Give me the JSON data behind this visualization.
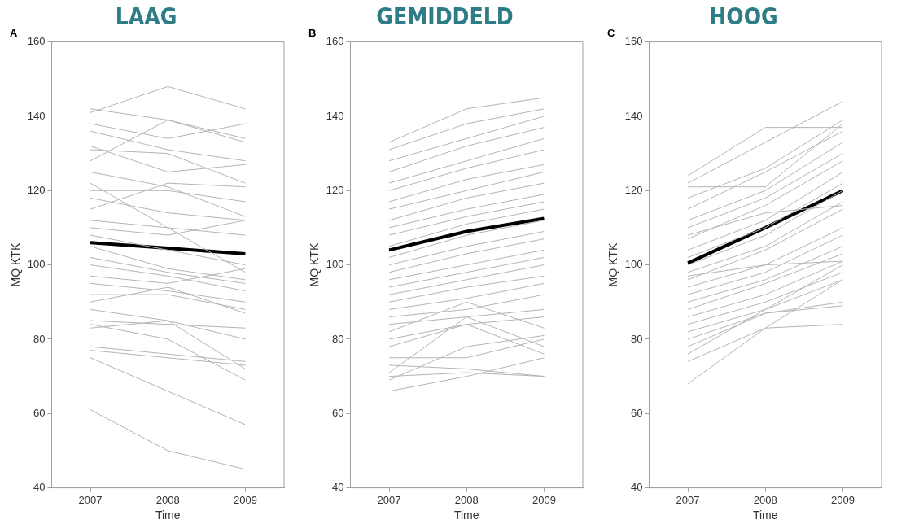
{
  "chart_data": [
    {
      "type": "line",
      "title": "LAAG",
      "annotations": [
        "A"
      ],
      "xlabel": "Time",
      "ylabel": "MQ KTK",
      "x": [
        2007,
        2008,
        2009
      ],
      "xlim": [
        2006.5,
        2009.5
      ],
      "xticks": [
        2007,
        2008,
        2009
      ],
      "ylim": [
        40,
        160
      ],
      "yticks": [
        40,
        60,
        80,
        100,
        120,
        140,
        160
      ],
      "series": [
        {
          "color": "#b4b4b4",
          "values": [
            141,
            148,
            142
          ]
        },
        {
          "color": "#b4b4b4",
          "values": [
            142,
            139,
            134
          ]
        },
        {
          "color": "#b4b4b4",
          "values": [
            61,
            50,
            45
          ]
        },
        {
          "color": "#b4b4b4",
          "values": [
            75,
            66,
            57
          ]
        },
        {
          "color": "#b4b4b4",
          "values": [
            138,
            134,
            138
          ]
        },
        {
          "color": "#b4b4b4",
          "values": [
            136,
            131,
            128
          ]
        },
        {
          "color": "#b4b4b4",
          "values": [
            132,
            125,
            127
          ]
        },
        {
          "color": "#b4b4b4",
          "values": [
            128,
            139,
            133
          ]
        },
        {
          "color": "#b4b4b4",
          "values": [
            120,
            120,
            117
          ]
        },
        {
          "color": "#b4b4b4",
          "values": [
            118,
            114,
            112
          ]
        },
        {
          "color": "#b4b4b4",
          "values": [
            115,
            122,
            121
          ]
        },
        {
          "color": "#b4b4b4",
          "values": [
            112,
            110,
            108
          ]
        },
        {
          "color": "#b4b4b4",
          "values": [
            110,
            108,
            112
          ]
        },
        {
          "color": "#b4b4b4",
          "values": [
            108,
            104,
            100
          ]
        },
        {
          "color": "#b4b4b4",
          "values": [
            105,
            99,
            96
          ]
        },
        {
          "color": "#b4b4b4",
          "values": [
            102,
            98,
            95
          ]
        },
        {
          "color": "#b4b4b4",
          "values": [
            100,
            97,
            93
          ]
        },
        {
          "color": "#b4b4b4",
          "values": [
            97,
            95,
            99
          ]
        },
        {
          "color": "#b4b4b4",
          "values": [
            95,
            93,
            90
          ]
        },
        {
          "color": "#b4b4b4",
          "values": [
            92,
            92,
            88
          ]
        },
        {
          "color": "#b4b4b4",
          "values": [
            90,
            94,
            87
          ]
        },
        {
          "color": "#b4b4b4",
          "values": [
            88,
            85,
            80
          ]
        },
        {
          "color": "#b4b4b4",
          "values": [
            85,
            84,
            83
          ]
        },
        {
          "color": "#b4b4b4",
          "values": [
            83,
            85,
            72
          ]
        },
        {
          "color": "#b4b4b4",
          "values": [
            78,
            76,
            74
          ]
        },
        {
          "color": "#b4b4b4",
          "values": [
            77,
            75,
            73
          ]
        },
        {
          "color": "#b4b4b4",
          "values": [
            84,
            80,
            69
          ]
        },
        {
          "color": "#b4b4b4",
          "values": [
            125,
            121,
            113
          ]
        },
        {
          "color": "#b4b4b4",
          "values": [
            131,
            130,
            122
          ]
        },
        {
          "color": "#b4b4b4",
          "values": [
            122,
            110,
            98
          ]
        },
        {
          "color": "#000000",
          "values": [
            106,
            104.5,
            103
          ]
        }
      ]
    },
    {
      "type": "line",
      "title": "GEMIDDELD",
      "annotations": [
        "B"
      ],
      "xlabel": "Time",
      "ylabel": "MQ KTK",
      "x": [
        2007,
        2008,
        2009
      ],
      "xlim": [
        2006.5,
        2009.5
      ],
      "xticks": [
        2007,
        2008,
        2009
      ],
      "ylim": [
        40,
        160
      ],
      "yticks": [
        40,
        60,
        80,
        100,
        120,
        140,
        160
      ],
      "series": [
        {
          "color": "#b4b4b4",
          "values": [
            133,
            142,
            145
          ]
        },
        {
          "color": "#b4b4b4",
          "values": [
            131,
            138,
            142
          ]
        },
        {
          "color": "#b4b4b4",
          "values": [
            128,
            134,
            140
          ]
        },
        {
          "color": "#b4b4b4",
          "values": [
            125,
            132,
            137
          ]
        },
        {
          "color": "#b4b4b4",
          "values": [
            122,
            128,
            134
          ]
        },
        {
          "color": "#b4b4b4",
          "values": [
            120,
            126,
            131
          ]
        },
        {
          "color": "#b4b4b4",
          "values": [
            117,
            123,
            127
          ]
        },
        {
          "color": "#b4b4b4",
          "values": [
            115,
            120,
            125
          ]
        },
        {
          "color": "#b4b4b4",
          "values": [
            112,
            118,
            122
          ]
        },
        {
          "color": "#b4b4b4",
          "values": [
            110,
            115,
            119
          ]
        },
        {
          "color": "#b4b4b4",
          "values": [
            108,
            113,
            117
          ]
        },
        {
          "color": "#b4b4b4",
          "values": [
            105,
            111,
            115
          ]
        },
        {
          "color": "#b4b4b4",
          "values": [
            102,
            108,
            112
          ]
        },
        {
          "color": "#b4b4b4",
          "values": [
            100,
            105,
            109
          ]
        },
        {
          "color": "#b4b4b4",
          "values": [
            98,
            103,
            107
          ]
        },
        {
          "color": "#b4b4b4",
          "values": [
            96,
            100,
            104
          ]
        },
        {
          "color": "#b4b4b4",
          "values": [
            94,
            98,
            102
          ]
        },
        {
          "color": "#b4b4b4",
          "values": [
            92,
            96,
            100
          ]
        },
        {
          "color": "#b4b4b4",
          "values": [
            90,
            94,
            97
          ]
        },
        {
          "color": "#b4b4b4",
          "values": [
            88,
            91,
            95
          ]
        },
        {
          "color": "#b4b4b4",
          "values": [
            86,
            88,
            92
          ]
        },
        {
          "color": "#b4b4b4",
          "values": [
            84,
            86,
            88
          ]
        },
        {
          "color": "#b4b4b4",
          "values": [
            80,
            84,
            86
          ]
        },
        {
          "color": "#b4b4b4",
          "values": [
            78,
            84,
            76
          ]
        },
        {
          "color": "#b4b4b4",
          "values": [
            75,
            75,
            80
          ]
        },
        {
          "color": "#b4b4b4",
          "values": [
            73,
            72,
            70
          ]
        },
        {
          "color": "#b4b4b4",
          "values": [
            70,
            71,
            70
          ]
        },
        {
          "color": "#b4b4b4",
          "values": [
            69,
            78,
            81
          ]
        },
        {
          "color": "#b4b4b4",
          "values": [
            66,
            70,
            75
          ]
        },
        {
          "color": "#b4b4b4",
          "values": [
            71,
            86,
            78
          ]
        },
        {
          "color": "#b4b4b4",
          "values": [
            82,
            90,
            83
          ]
        },
        {
          "color": "#000000",
          "values": [
            104,
            109,
            112.5
          ]
        }
      ]
    },
    {
      "type": "line",
      "title": "HOOG",
      "annotations": [
        "C"
      ],
      "xlabel": "Time",
      "ylabel": "MQ KTK",
      "x": [
        2007,
        2008,
        2009
      ],
      "xlim": [
        2006.5,
        2009.5
      ],
      "xticks": [
        2007,
        2008,
        2009
      ],
      "ylim": [
        40,
        160
      ],
      "yticks": [
        40,
        60,
        80,
        100,
        120,
        140,
        160
      ],
      "series": [
        {
          "color": "#b4b4b4",
          "values": [
            124,
            137,
            137
          ]
        },
        {
          "color": "#b4b4b4",
          "values": [
            122,
            133,
            144
          ]
        },
        {
          "color": "#b4b4b4",
          "values": [
            121,
            121,
            138
          ]
        },
        {
          "color": "#b4b4b4",
          "values": [
            118,
            126,
            139
          ]
        },
        {
          "color": "#b4b4b4",
          "values": [
            115,
            125,
            136
          ]
        },
        {
          "color": "#b4b4b4",
          "values": [
            112,
            120,
            133
          ]
        },
        {
          "color": "#b4b4b4",
          "values": [
            110,
            118,
            130
          ]
        },
        {
          "color": "#b4b4b4",
          "values": [
            107,
            116,
            128
          ]
        },
        {
          "color": "#b4b4b4",
          "values": [
            104,
            112,
            125
          ]
        },
        {
          "color": "#b4b4b4",
          "values": [
            102,
            110,
            122
          ]
        },
        {
          "color": "#b4b4b4",
          "values": [
            100,
            108,
            120
          ]
        },
        {
          "color": "#b4b4b4",
          "values": [
            98,
            105,
            117
          ]
        },
        {
          "color": "#b4b4b4",
          "values": [
            96,
            104,
            115
          ]
        },
        {
          "color": "#b4b4b4",
          "values": [
            94,
            100,
            110
          ]
        },
        {
          "color": "#b4b4b4",
          "values": [
            92,
            98,
            108
          ]
        },
        {
          "color": "#b4b4b4",
          "values": [
            90,
            96,
            105
          ]
        },
        {
          "color": "#b4b4b4",
          "values": [
            88,
            95,
            103
          ]
        },
        {
          "color": "#b4b4b4",
          "values": [
            86,
            92,
            101
          ]
        },
        {
          "color": "#b4b4b4",
          "values": [
            84,
            90,
            98
          ]
        },
        {
          "color": "#b4b4b4",
          "values": [
            82,
            88,
            96
          ]
        },
        {
          "color": "#b4b4b4",
          "values": [
            80,
            87,
            90
          ]
        },
        {
          "color": "#b4b4b4",
          "values": [
            78,
            87,
            89
          ]
        },
        {
          "color": "#b4b4b4",
          "values": [
            74,
            83,
            84
          ]
        },
        {
          "color": "#b4b4b4",
          "values": [
            68,
            83,
            96
          ]
        },
        {
          "color": "#b4b4b4",
          "values": [
            76,
            88,
            100
          ]
        },
        {
          "color": "#b4b4b4",
          "values": [
            97,
            100,
            101
          ]
        },
        {
          "color": "#b4b4b4",
          "values": [
            108,
            114,
            116
          ]
        },
        {
          "color": "#000000",
          "values": [
            100.5,
            110,
            120
          ]
        }
      ]
    }
  ]
}
